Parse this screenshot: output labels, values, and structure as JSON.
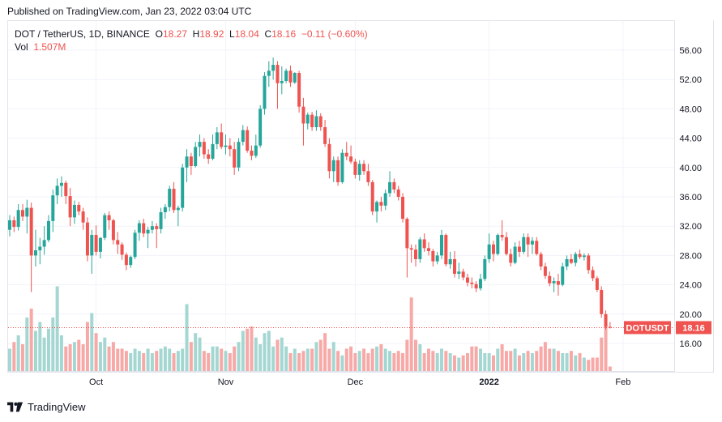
{
  "published": "Published on TradingView.com, Jan 23, 2022 03:04 UTC",
  "legend": {
    "symbol": "DOT / TetherUS, 1D, BINANCE",
    "o_label": "O",
    "o_value": "18.27",
    "h_label": "H",
    "h_value": "18.92",
    "l_label": "L",
    "l_value": "18.04",
    "c_label": "C",
    "c_value": "18.16",
    "change": "−0.11 (−0.60%)",
    "vol_label": "Vol",
    "vol_value": "1.507M"
  },
  "badge": {
    "symbol": "DOTUSDT",
    "price": "18.16"
  },
  "footer": {
    "brand": "TradingView",
    "logo": "tradingview-logo-icon"
  },
  "colors": {
    "up": "#26a69a",
    "down": "#ef5350",
    "up_vol": "#a5d7d2",
    "down_vol": "#f7a9a7",
    "grid": "#f0f3fa"
  },
  "chart_data": {
    "type": "candlestick",
    "title": "DOT / TetherUS, 1D, BINANCE",
    "y_ticks": [
      "16.00",
      "20.00",
      "24.00",
      "28.00",
      "32.00",
      "36.00",
      "40.00",
      "44.00",
      "48.00",
      "52.00",
      "56.00"
    ],
    "ylim": [
      12.2,
      59.5
    ],
    "x_ticks": [
      {
        "label": "Oct",
        "day": 20
      },
      {
        "label": "Nov",
        "day": 50
      },
      {
        "label": "Dec",
        "day": 80
      },
      {
        "label": "2022",
        "day": 111
      },
      {
        "label": "Feb",
        "day": 142
      }
    ],
    "grid": true,
    "last_price": 18.16,
    "ohlc": [
      [
        31.5,
        33.5,
        30.6,
        32.8
      ],
      [
        32.8,
        33.3,
        31.2,
        31.9
      ],
      [
        31.9,
        35.0,
        31.4,
        34.2
      ],
      [
        34.2,
        35.0,
        32.7,
        33.3
      ],
      [
        33.3,
        35.6,
        31.0,
        34.5
      ],
      [
        34.5,
        35.2,
        23.0,
        28.0
      ],
      [
        28.0,
        31.5,
        26.5,
        28.7
      ],
      [
        28.7,
        30.4,
        26.8,
        29.2
      ],
      [
        29.2,
        32.0,
        28.1,
        30.1
      ],
      [
        30.1,
        33.5,
        29.8,
        32.7
      ],
      [
        32.7,
        37.0,
        31.2,
        36.2
      ],
      [
        36.2,
        38.5,
        35.0,
        37.5
      ],
      [
        37.5,
        38.8,
        36.0,
        37.9
      ],
      [
        37.9,
        38.2,
        35.0,
        36.1
      ],
      [
        36.1,
        37.2,
        32.0,
        33.2
      ],
      [
        33.2,
        35.5,
        32.3,
        34.9
      ],
      [
        34.9,
        35.3,
        33.5,
        34.0
      ],
      [
        34.0,
        34.5,
        31.5,
        32.5
      ],
      [
        32.5,
        33.2,
        27.2,
        28.0
      ],
      [
        28.0,
        31.5,
        25.5,
        30.8
      ],
      [
        30.8,
        32.1,
        28.0,
        28.5
      ],
      [
        28.5,
        30.5,
        27.6,
        30.4
      ],
      [
        30.4,
        33.8,
        30.1,
        33.5
      ],
      [
        33.5,
        34.0,
        31.5,
        32.8
      ],
      [
        32.8,
        33.0,
        29.5,
        30.1
      ],
      [
        30.1,
        31.2,
        28.2,
        29.5
      ],
      [
        29.5,
        29.8,
        27.4,
        28.1
      ],
      [
        28.1,
        28.4,
        26.0,
        26.7
      ],
      [
        26.7,
        28.0,
        26.3,
        27.8
      ],
      [
        27.8,
        31.5,
        27.5,
        31.1
      ],
      [
        31.1,
        32.8,
        30.0,
        32.4
      ],
      [
        32.4,
        33.0,
        30.5,
        31.0
      ],
      [
        31.0,
        31.9,
        29.0,
        31.5
      ],
      [
        31.5,
        32.7,
        31.0,
        32.0
      ],
      [
        32.0,
        32.4,
        29.0,
        31.6
      ],
      [
        31.6,
        34.5,
        31.0,
        33.9
      ],
      [
        33.9,
        35.0,
        33.0,
        34.6
      ],
      [
        34.6,
        37.5,
        34.0,
        37.1
      ],
      [
        37.1,
        38.0,
        33.8,
        34.2
      ],
      [
        34.2,
        34.8,
        32.0,
        34.5
      ],
      [
        34.5,
        40.5,
        34.0,
        40.0
      ],
      [
        40.0,
        42.5,
        38.0,
        41.5
      ],
      [
        41.5,
        42.0,
        39.0,
        40.2
      ],
      [
        40.2,
        43.5,
        40.0,
        42.8
      ],
      [
        42.8,
        44.5,
        41.5,
        43.5
      ],
      [
        43.5,
        44.0,
        41.2,
        41.8
      ],
      [
        41.8,
        42.5,
        40.5,
        41.2
      ],
      [
        41.2,
        44.5,
        41.0,
        43.2
      ],
      [
        43.2,
        45.5,
        42.5,
        44.8
      ],
      [
        44.8,
        46.0,
        42.5,
        42.8
      ],
      [
        42.8,
        44.5,
        41.8,
        43.0
      ],
      [
        43.0,
        44.0,
        41.5,
        42.5
      ],
      [
        42.5,
        43.5,
        39.0,
        40.0
      ],
      [
        40.0,
        44.0,
        39.5,
        43.5
      ],
      [
        43.5,
        45.8,
        43.0,
        45.1
      ],
      [
        45.1,
        45.6,
        42.0,
        42.3
      ],
      [
        42.3,
        43.0,
        41.0,
        41.6
      ],
      [
        41.6,
        44.5,
        41.3,
        43.0
      ],
      [
        43.0,
        48.5,
        42.7,
        48.0
      ],
      [
        48.0,
        53.0,
        47.2,
        52.5
      ],
      [
        52.5,
        54.5,
        51.0,
        53.2
      ],
      [
        53.2,
        55.0,
        52.0,
        54.0
      ],
      [
        54.0,
        54.5,
        48.0,
        51.5
      ],
      [
        51.5,
        53.8,
        50.0,
        51.8
      ],
      [
        51.8,
        53.5,
        51.5,
        53.2
      ],
      [
        53.2,
        53.9,
        51.0,
        51.6
      ],
      [
        51.6,
        53.0,
        51.4,
        52.9
      ],
      [
        52.9,
        53.2,
        47.5,
        48.3
      ],
      [
        48.3,
        49.5,
        43.0,
        46.0
      ],
      [
        46.0,
        47.5,
        45.2,
        47.2
      ],
      [
        47.2,
        47.6,
        45.0,
        45.5
      ],
      [
        45.5,
        47.8,
        45.0,
        47.0
      ],
      [
        47.0,
        47.4,
        45.0,
        45.5
      ],
      [
        45.5,
        46.5,
        42.8,
        43.2
      ],
      [
        43.2,
        44.0,
        38.5,
        39.5
      ],
      [
        39.5,
        41.5,
        38.0,
        41.0
      ],
      [
        41.0,
        41.5,
        37.5,
        38.0
      ],
      [
        38.0,
        42.5,
        37.8,
        42.0
      ],
      [
        42.0,
        43.5,
        41.0,
        41.5
      ],
      [
        41.5,
        43.0,
        40.5,
        40.8
      ],
      [
        40.8,
        41.2,
        38.5,
        39.0
      ],
      [
        39.0,
        41.0,
        38.2,
        40.5
      ],
      [
        40.5,
        41.0,
        39.0,
        39.5
      ],
      [
        39.5,
        40.5,
        37.5,
        38.0
      ],
      [
        38.0,
        38.3,
        33.5,
        34.0
      ],
      [
        34.0,
        35.5,
        32.5,
        35.3
      ],
      [
        35.3,
        36.0,
        34.0,
        34.8
      ],
      [
        34.8,
        37.0,
        34.2,
        36.5
      ],
      [
        36.5,
        39.5,
        36.0,
        38.0
      ],
      [
        38.0,
        38.5,
        36.5,
        37.0
      ],
      [
        37.0,
        37.5,
        35.5,
        36.0
      ],
      [
        36.0,
        36.5,
        32.5,
        33.0
      ],
      [
        33.0,
        33.2,
        25.0,
        29.0
      ],
      [
        29.0,
        29.5,
        27.0,
        28.8
      ],
      [
        28.8,
        29.5,
        26.5,
        27.5
      ],
      [
        27.5,
        30.5,
        27.0,
        30.2
      ],
      [
        30.2,
        31.0,
        28.5,
        29.0
      ],
      [
        29.0,
        29.8,
        28.0,
        28.6
      ],
      [
        28.6,
        28.9,
        26.5,
        27.2
      ],
      [
        27.2,
        28.5,
        26.8,
        28.0
      ],
      [
        28.0,
        31.5,
        27.5,
        30.8
      ],
      [
        30.8,
        31.0,
        26.5,
        26.8
      ],
      [
        26.8,
        28.5,
        26.2,
        27.5
      ],
      [
        27.5,
        28.6,
        25.0,
        25.5
      ],
      [
        25.5,
        27.0,
        24.8,
        25.8
      ],
      [
        25.8,
        26.2,
        24.6,
        25.0
      ],
      [
        25.0,
        25.5,
        23.8,
        24.3
      ],
      [
        24.3,
        25.0,
        23.5,
        24.1
      ],
      [
        24.1,
        24.5,
        23.0,
        23.5
      ],
      [
        23.5,
        25.5,
        23.2,
        24.8
      ],
      [
        24.8,
        28.0,
        24.5,
        27.5
      ],
      [
        27.5,
        31.0,
        27.0,
        29.5
      ],
      [
        29.5,
        30.0,
        27.2,
        28.2
      ],
      [
        28.2,
        31.0,
        28.0,
        30.8
      ],
      [
        30.8,
        32.8,
        30.0,
        30.5
      ],
      [
        30.5,
        31.2,
        28.0,
        28.2
      ],
      [
        28.2,
        28.9,
        26.5,
        27.0
      ],
      [
        27.0,
        29.8,
        26.8,
        29.2
      ],
      [
        29.2,
        30.0,
        27.8,
        28.5
      ],
      [
        28.5,
        31.0,
        28.2,
        30.5
      ],
      [
        30.5,
        31.0,
        27.8,
        29.5
      ],
      [
        29.5,
        30.5,
        28.2,
        30.0
      ],
      [
        30.0,
        30.5,
        28.0,
        28.2
      ],
      [
        28.2,
        28.5,
        26.0,
        26.5
      ],
      [
        26.5,
        27.0,
        24.8,
        25.2
      ],
      [
        25.2,
        25.8,
        23.8,
        24.2
      ],
      [
        24.2,
        25.0,
        23.0,
        24.5
      ],
      [
        24.5,
        25.5,
        22.5,
        24.0
      ],
      [
        24.0,
        27.0,
        23.8,
        26.5
      ],
      [
        26.5,
        28.0,
        26.0,
        27.5
      ],
      [
        27.5,
        28.2,
        26.8,
        27.0
      ],
      [
        27.0,
        28.5,
        26.5,
        28.2
      ],
      [
        28.2,
        28.8,
        27.5,
        27.8
      ],
      [
        27.8,
        28.3,
        27.3,
        28.0
      ],
      [
        28.0,
        28.3,
        25.5,
        26.0
      ],
      [
        26.0,
        26.5,
        24.5,
        24.9
      ],
      [
        24.9,
        25.2,
        23.0,
        23.3
      ],
      [
        23.3,
        23.8,
        19.5,
        20.0
      ],
      [
        20.0,
        20.5,
        17.9,
        18.27
      ],
      [
        18.27,
        18.92,
        18.04,
        18.16
      ]
    ],
    "volume": [
      1.0,
      1.3,
      1.6,
      1.2,
      2.4,
      2.8,
      1.8,
      2.2,
      1.5,
      1.9,
      2.4,
      3.8,
      1.6,
      1.1,
      1.2,
      1.3,
      1.4,
      1.2,
      2.2,
      2.6,
      1.7,
      1.3,
      1.5,
      1.1,
      1.3,
      1.0,
      1.0,
      0.9,
      0.8,
      1.0,
      0.9,
      0.8,
      1.0,
      0.8,
      0.9,
      1.0,
      1.1,
      1.0,
      0.8,
      0.9,
      1.0,
      3.0,
      1.3,
      1.7,
      1.5,
      0.9,
      0.8,
      1.1,
      1.1,
      1.0,
      0.9,
      0.8,
      1.1,
      1.3,
      1.8,
      1.9,
      2.0,
      1.5,
      1.2,
      1.7,
      1.8,
      1.1,
      1.4,
      1.5,
      1.1,
      0.8,
      1.0,
      0.8,
      0.9,
      1.0,
      1.0,
      1.3,
      1.4,
      1.7,
      1.0,
      1.3,
      0.9,
      0.7,
      1.0,
      1.1,
      0.8,
      0.9,
      1.0,
      0.8,
      1.0,
      1.1,
      1.2,
      1.0,
      0.9,
      0.8,
      0.9,
      0.8,
      1.4,
      3.3,
      1.4,
      1.2,
      0.8,
      1.0,
      0.9,
      0.8,
      1.0,
      0.9,
      0.8,
      0.7,
      0.6,
      0.7,
      0.8,
      1.1,
      1.1,
      1.0,
      0.8,
      0.8,
      0.7,
      1.0,
      1.2,
      0.9,
      0.9,
      1.0,
      0.7,
      0.8,
      0.9,
      0.8,
      0.9,
      1.1,
      1.3,
      1.0,
      1.0,
      0.9,
      0.8,
      0.8,
      0.9,
      0.7,
      0.8,
      0.6,
      0.5,
      0.6,
      0.6,
      1.5,
      2.1,
      0.2
    ]
  }
}
